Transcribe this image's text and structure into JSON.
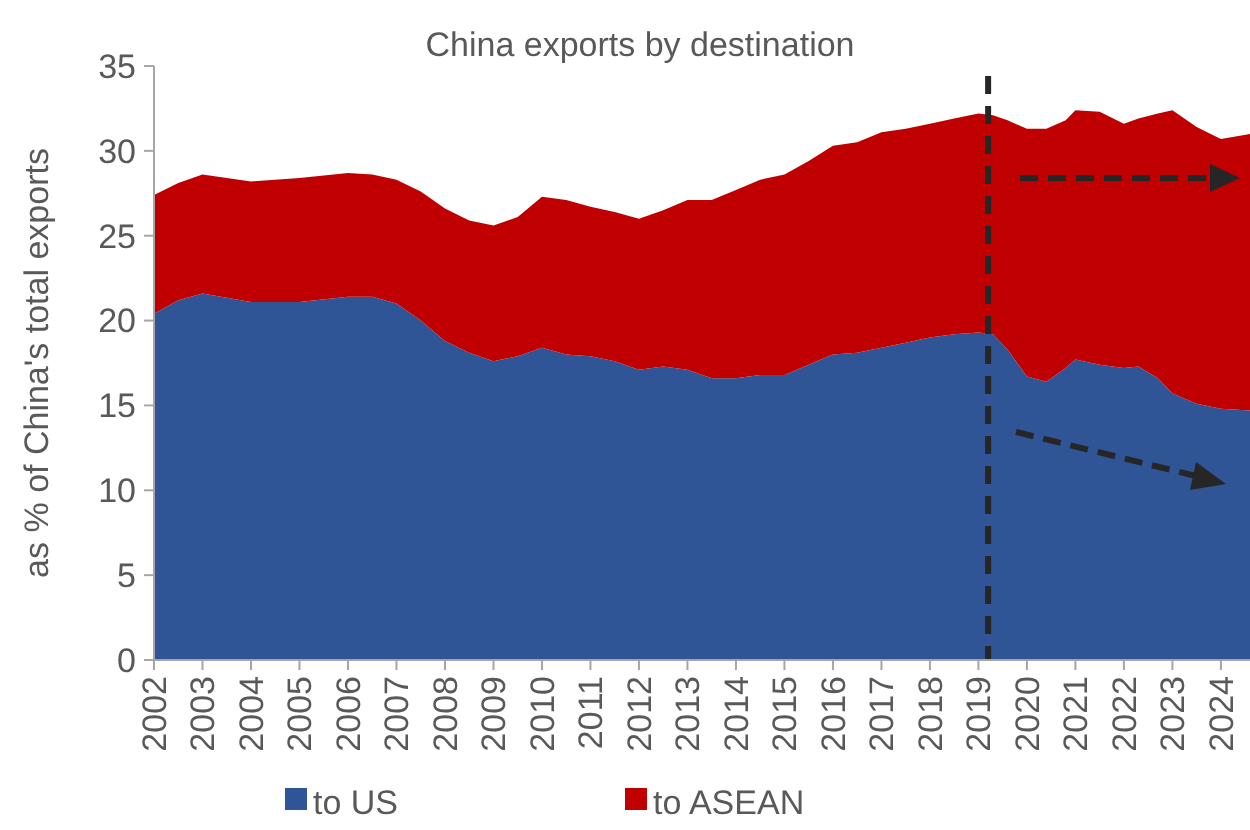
{
  "chart_data": {
    "type": "area",
    "stacked": true,
    "title": "China exports by destination",
    "ylabel": "as % of China's total exports",
    "x": [
      2002,
      2002.5,
      2003,
      2004,
      2005,
      2006,
      2006.5,
      2007,
      2007.5,
      2008,
      2008.5,
      2009,
      2009.5,
      2010,
      2010.5,
      2011,
      2011.5,
      2012,
      2012.5,
      2013,
      2013.5,
      2014,
      2014.5,
      2015,
      2015.5,
      2016,
      2016.5,
      2017,
      2017.5,
      2018,
      2018.5,
      2019,
      2019.3,
      2019.6,
      2020,
      2020.4,
      2020.8,
      2021,
      2021.5,
      2022,
      2022.3,
      2022.7,
      2023,
      2023.5,
      2024,
      2024.6
    ],
    "series": [
      {
        "name": "to US",
        "color": "#2f5597",
        "values": [
          20.4,
          21.2,
          21.6,
          21.1,
          21.1,
          21.4,
          21.4,
          21.0,
          20.0,
          18.8,
          18.1,
          17.6,
          17.9,
          18.4,
          18.0,
          17.9,
          17.6,
          17.1,
          17.3,
          17.1,
          16.6,
          16.6,
          16.8,
          16.8,
          17.4,
          18.0,
          18.1,
          18.4,
          18.7,
          19.0,
          19.2,
          19.3,
          19.2,
          18.3,
          16.7,
          16.4,
          17.2,
          17.7,
          17.4,
          17.2,
          17.3,
          16.6,
          15.7,
          15.1,
          14.8,
          14.7
        ]
      },
      {
        "name": "to ASEAN",
        "color": "#c00000",
        "values": [
          7.0,
          6.9,
          7.0,
          7.1,
          7.3,
          7.3,
          7.2,
          7.3,
          7.6,
          7.8,
          7.8,
          8.0,
          8.2,
          8.9,
          9.1,
          8.8,
          8.8,
          8.9,
          9.2,
          10.0,
          10.5,
          11.1,
          11.5,
          11.8,
          12.0,
          12.3,
          12.4,
          12.7,
          12.6,
          12.6,
          12.7,
          12.9,
          12.9,
          13.5,
          14.6,
          14.9,
          14.6,
          14.7,
          14.9,
          14.4,
          14.6,
          15.6,
          16.7,
          16.3,
          15.9,
          16.3
        ]
      }
    ],
    "xlim": [
      2002,
      2024.6
    ],
    "xticks": [
      2002,
      2003,
      2004,
      2005,
      2006,
      2007,
      2008,
      2009,
      2010,
      2011,
      2012,
      2013,
      2014,
      2015,
      2016,
      2017,
      2018,
      2019,
      2020,
      2021,
      2022,
      2023,
      2024
    ],
    "ylim": [
      0,
      35
    ],
    "yticks": [
      0,
      5,
      10,
      15,
      20,
      25,
      30,
      35
    ],
    "ref_lines": [
      {
        "axis": "x",
        "value": 2019.2,
        "color": "#262626",
        "line_style": "dashed"
      }
    ],
    "grid": false,
    "legend": "bottom"
  }
}
